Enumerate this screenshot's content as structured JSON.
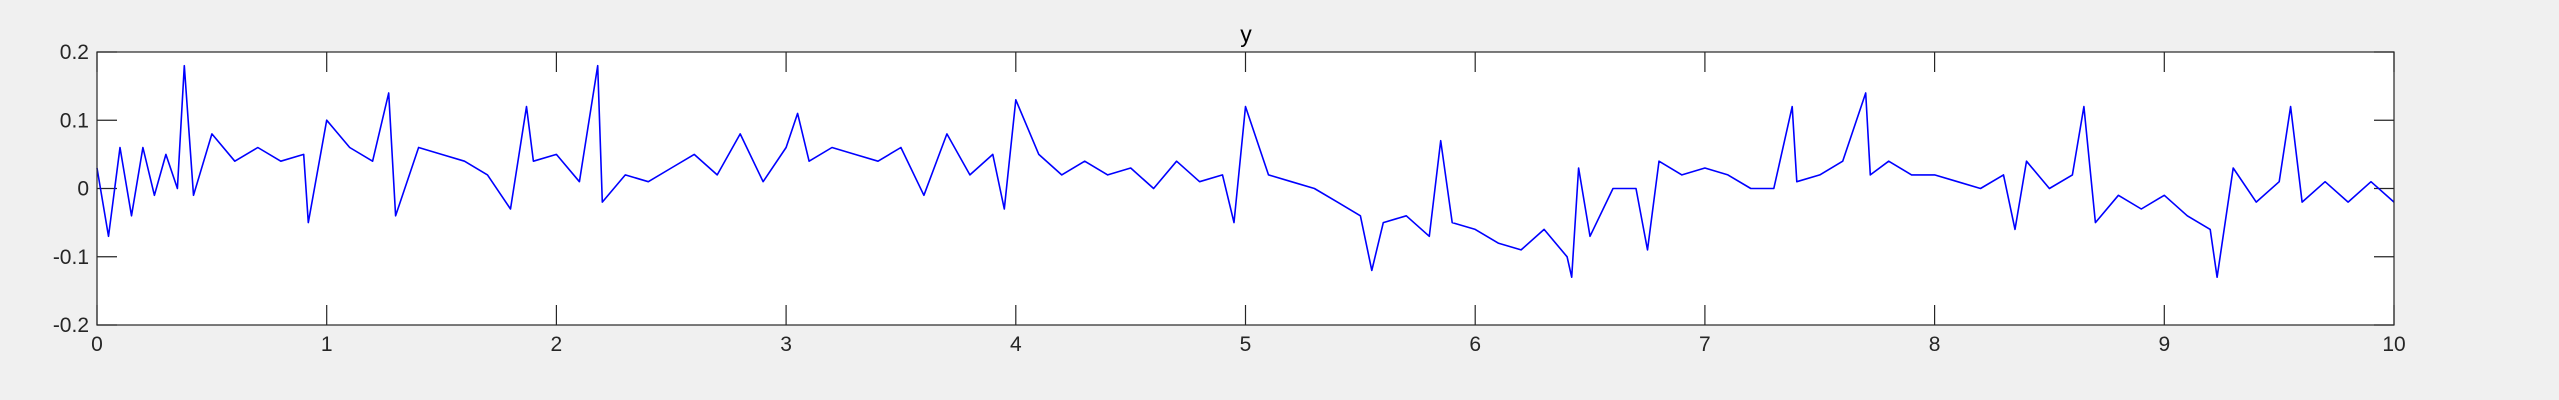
{
  "chart_data": {
    "type": "line",
    "title": "y",
    "xlabel": "",
    "ylabel": "",
    "xlim": [
      0,
      10
    ],
    "ylim": [
      -0.2,
      0.2
    ],
    "xticks": [
      0,
      1,
      2,
      3,
      4,
      5,
      6,
      7,
      8,
      9,
      10
    ],
    "yticks": [
      -0.2,
      -0.1,
      0,
      0.1,
      0.2
    ],
    "xtick_labels": [
      "0",
      "1",
      "2",
      "3",
      "4",
      "5",
      "6",
      "7",
      "8",
      "9",
      "10"
    ],
    "ytick_labels": [
      "-0.2",
      "-0.1",
      "0",
      "0.1",
      "0.2"
    ],
    "grid": false,
    "background": "#f0f0f0",
    "axes_color": "#ffffff",
    "series": [
      {
        "color": "#0000ff",
        "x": [
          0,
          0.05,
          0.1,
          0.15,
          0.2,
          0.25,
          0.3,
          0.35,
          0.38,
          0.42,
          0.5,
          0.6,
          0.7,
          0.8,
          0.9,
          0.92,
          1.0,
          1.1,
          1.2,
          1.27,
          1.3,
          1.4,
          1.5,
          1.6,
          1.7,
          1.8,
          1.87,
          1.9,
          2.0,
          2.1,
          2.18,
          2.2,
          2.3,
          2.4,
          2.5,
          2.6,
          2.7,
          2.8,
          2.9,
          3.0,
          3.05,
          3.1,
          3.2,
          3.3,
          3.4,
          3.5,
          3.6,
          3.7,
          3.8,
          3.9,
          3.95,
          4.0,
          4.1,
          4.2,
          4.3,
          4.4,
          4.5,
          4.6,
          4.7,
          4.8,
          4.9,
          4.95,
          5.0,
          5.1,
          5.2,
          5.3,
          5.4,
          5.5,
          5.55,
          5.6,
          5.7,
          5.8,
          5.85,
          5.9,
          6.0,
          6.1,
          6.2,
          6.3,
          6.4,
          6.42,
          6.45,
          6.5,
          6.6,
          6.7,
          6.75,
          6.8,
          6.9,
          7.0,
          7.1,
          7.2,
          7.3,
          7.38,
          7.4,
          7.5,
          7.6,
          7.7,
          7.72,
          7.8,
          7.9,
          8.0,
          8.1,
          8.2,
          8.3,
          8.35,
          8.4,
          8.5,
          8.6,
          8.65,
          8.7,
          8.8,
          8.9,
          9.0,
          9.1,
          9.2,
          9.23,
          9.3,
          9.4,
          9.5,
          9.55,
          9.6,
          9.7,
          9.8,
          9.9,
          10.0
        ],
        "y": [
          0.03,
          -0.07,
          0.06,
          -0.04,
          0.06,
          -0.01,
          0.05,
          0.0,
          0.18,
          -0.01,
          0.08,
          0.04,
          0.06,
          0.04,
          0.05,
          -0.05,
          0.1,
          0.06,
          0.04,
          0.14,
          -0.04,
          0.06,
          0.05,
          0.04,
          0.02,
          -0.03,
          0.12,
          0.04,
          0.05,
          0.01,
          0.18,
          -0.02,
          0.02,
          0.01,
          0.03,
          0.05,
          0.02,
          0.08,
          0.01,
          0.06,
          0.11,
          0.04,
          0.06,
          0.05,
          0.04,
          0.06,
          -0.01,
          0.08,
          0.02,
          0.05,
          -0.03,
          0.13,
          0.05,
          0.02,
          0.04,
          0.02,
          0.03,
          0.0,
          0.04,
          0.01,
          0.02,
          -0.05,
          0.12,
          0.02,
          0.01,
          0.0,
          -0.02,
          -0.04,
          -0.12,
          -0.05,
          -0.04,
          -0.07,
          0.07,
          -0.05,
          -0.06,
          -0.08,
          -0.09,
          -0.06,
          -0.1,
          -0.13,
          0.03,
          -0.07,
          0.0,
          0.0,
          -0.09,
          0.04,
          0.02,
          0.03,
          0.02,
          0.0,
          0.0,
          0.12,
          0.01,
          0.02,
          0.04,
          0.14,
          0.02,
          0.04,
          0.02,
          0.02,
          0.01,
          0.0,
          0.02,
          -0.06,
          0.04,
          0.0,
          0.02,
          0.12,
          -0.05,
          -0.01,
          -0.03,
          -0.01,
          -0.04,
          -0.06,
          -0.13,
          0.03,
          -0.02,
          0.01,
          0.12,
          -0.02,
          0.01,
          -0.02,
          0.01,
          -0.02
        ]
      }
    ]
  }
}
